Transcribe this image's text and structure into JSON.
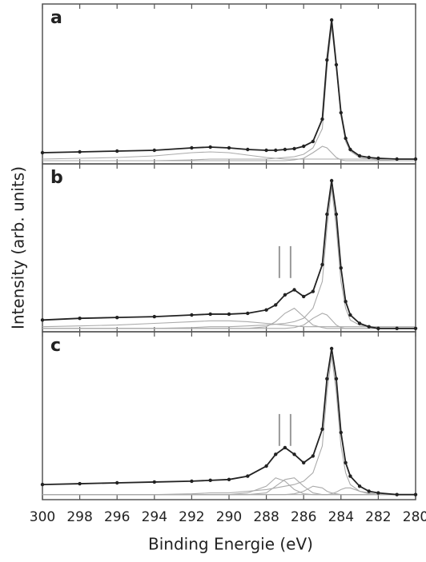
{
  "figure": {
    "xlabel": "Binding Energie (eV)",
    "ylabel": "Intensity (arb. units)"
  },
  "chart_data": [
    {
      "type": "line",
      "label": "a",
      "xlim": [
        300,
        280
      ],
      "ylim": [
        0,
        100
      ],
      "xticks": [
        300,
        298,
        296,
        294,
        292,
        290,
        288,
        286,
        284,
        282,
        280
      ],
      "x": [
        300,
        298,
        296,
        294,
        292,
        291,
        290,
        289,
        288,
        287.5,
        287,
        286.5,
        286,
        285.5,
        285,
        284.75,
        284.5,
        284.25,
        284,
        283.75,
        283.5,
        283,
        282.5,
        282,
        281,
        280
      ],
      "reference_lines": [],
      "series": [
        {
          "color": "#222222",
          "markers": true,
          "values": [
            7,
            7.5,
            8,
            8.5,
            10,
            10.5,
            10,
            9,
            8.5,
            8.5,
            9,
            9.5,
            11,
            14,
            28,
            65,
            90,
            62,
            32,
            16,
            9,
            5,
            4,
            3.5,
            3,
            3
          ]
        },
        {
          "color": "#aaaaaa",
          "markers": false,
          "values": [
            2,
            2,
            2,
            2,
            2.5,
            3,
            3,
            3,
            3,
            3.5,
            4,
            4.5,
            6,
            10,
            22,
            60,
            86,
            60,
            30,
            14,
            8,
            4,
            3,
            2.5,
            2,
            2
          ]
        },
        {
          "color": "#aaaaaa",
          "markers": false,
          "values": [
            2,
            2,
            2,
            2,
            2,
            2,
            2,
            2,
            2,
            2,
            2,
            2.5,
            3.5,
            7,
            11,
            10,
            7,
            4,
            2.5,
            2,
            2,
            2,
            2,
            2,
            2,
            2
          ]
        },
        {
          "color": "#aaaaaa",
          "markers": false,
          "values": [
            3,
            3.5,
            4,
            5,
            7,
            7.5,
            7,
            5.5,
            4,
            3.5,
            3,
            3,
            3,
            3,
            3,
            3,
            3,
            3,
            3,
            3,
            3,
            3,
            3,
            3,
            3,
            3
          ]
        }
      ]
    },
    {
      "type": "line",
      "label": "b",
      "xlim": [
        300,
        280
      ],
      "ylim": [
        0,
        100
      ],
      "xticks": [
        300,
        298,
        296,
        294,
        292,
        290,
        288,
        286,
        284,
        282,
        280
      ],
      "x": [
        300,
        298,
        296,
        294,
        292,
        291,
        290,
        289,
        288,
        287.5,
        287,
        286.5,
        286,
        285.5,
        285,
        284.75,
        284.5,
        284.25,
        284,
        283.75,
        283.5,
        283,
        282.5,
        282,
        281,
        280
      ],
      "reference_lines": [
        287.3,
        286.7
      ],
      "series": [
        {
          "color": "#222222",
          "markers": true,
          "values": [
            7,
            8,
            8.5,
            9,
            10,
            10.5,
            10.5,
            11,
            13,
            16,
            22,
            25,
            21,
            24,
            40,
            70,
            90,
            70,
            38,
            18,
            10,
            5,
            3,
            2,
            2,
            2
          ]
        },
        {
          "color": "#aaaaaa",
          "markers": false,
          "values": [
            2,
            2,
            2,
            2,
            2.5,
            3,
            3,
            3.5,
            4,
            4.5,
            5,
            6,
            8,
            14,
            30,
            62,
            86,
            62,
            30,
            14,
            7,
            4,
            3,
            2,
            2,
            2
          ]
        },
        {
          "color": "#aaaaaa",
          "markers": false,
          "values": [
            2,
            2,
            2,
            2,
            2,
            2,
            2,
            2,
            3,
            6,
            11,
            14,
            9,
            4,
            2.5,
            2,
            2,
            2,
            2,
            2,
            2,
            2,
            2,
            2,
            2,
            2
          ]
        },
        {
          "color": "#aaaaaa",
          "markers": false,
          "values": [
            2,
            2,
            2,
            2,
            2,
            2,
            2,
            2,
            2,
            2,
            2,
            2.5,
            4,
            8,
            11,
            10,
            7,
            4,
            2.5,
            2,
            2,
            2,
            2,
            2,
            2,
            2
          ]
        },
        {
          "color": "#aaaaaa",
          "markers": false,
          "values": [
            3,
            3.5,
            4,
            5,
            6,
            6.5,
            6.5,
            6,
            5,
            4.5,
            4,
            3.5,
            3,
            3,
            3,
            3,
            3,
            3,
            3,
            3,
            3,
            3,
            3,
            3,
            3,
            3
          ]
        }
      ]
    },
    {
      "type": "line",
      "label": "c",
      "xlim": [
        300,
        280
      ],
      "ylim": [
        0,
        100
      ],
      "xticks": [
        300,
        298,
        296,
        294,
        292,
        290,
        288,
        286,
        284,
        282,
        280
      ],
      "x": [
        300,
        298,
        296,
        294,
        292,
        291,
        290,
        289,
        288,
        287.5,
        287,
        286.5,
        286,
        285.5,
        285,
        284.75,
        284.5,
        284.25,
        284,
        283.75,
        283.5,
        283,
        282.5,
        282,
        281,
        280
      ],
      "reference_lines": [
        287.3,
        286.7
      ],
      "series": [
        {
          "color": "#222222",
          "markers": true,
          "values": [
            9,
            9.5,
            10,
            10.5,
            11,
            11.5,
            12,
            14,
            20,
            27,
            31,
            27,
            22,
            26,
            42,
            72,
            90,
            72,
            40,
            22,
            14,
            8,
            5,
            4,
            3,
            3
          ]
        },
        {
          "color": "#aaaaaa",
          "markers": false,
          "values": [
            3,
            3,
            3,
            3,
            3.5,
            4,
            4,
            5,
            6,
            7,
            8,
            9,
            11,
            16,
            32,
            64,
            86,
            64,
            32,
            16,
            9,
            5,
            4,
            3,
            3,
            3
          ]
        },
        {
          "color": "#aaaaaa",
          "markers": false,
          "values": [
            3,
            3,
            3,
            3,
            3,
            3,
            3,
            4,
            8,
            13,
            11,
            6,
            3.5,
            3,
            3,
            3,
            3,
            3,
            3,
            3,
            3,
            3,
            3,
            3,
            3,
            3
          ]
        },
        {
          "color": "#aaaaaa",
          "markers": false,
          "values": [
            3,
            3,
            3,
            3,
            3,
            3,
            3,
            3,
            4,
            8,
            12,
            13,
            8,
            4,
            3,
            3,
            3,
            3,
            3,
            3,
            3,
            3,
            3,
            3,
            3,
            3
          ]
        },
        {
          "color": "#aaaaaa",
          "markers": false,
          "values": [
            3,
            3,
            3,
            3,
            3,
            3,
            3,
            3,
            3,
            3,
            3,
            3.5,
            5,
            8,
            7,
            5,
            4,
            3.5,
            3,
            3,
            3,
            3,
            3,
            3,
            3,
            3
          ]
        },
        {
          "color": "#aaaaaa",
          "markers": false,
          "values": [
            3,
            3,
            3,
            3,
            3,
            3,
            3,
            3,
            3,
            3,
            3,
            3,
            3,
            3,
            3,
            3,
            3.5,
            4.5,
            6,
            7,
            7,
            5,
            3.5,
            3,
            3,
            3
          ]
        }
      ]
    }
  ]
}
